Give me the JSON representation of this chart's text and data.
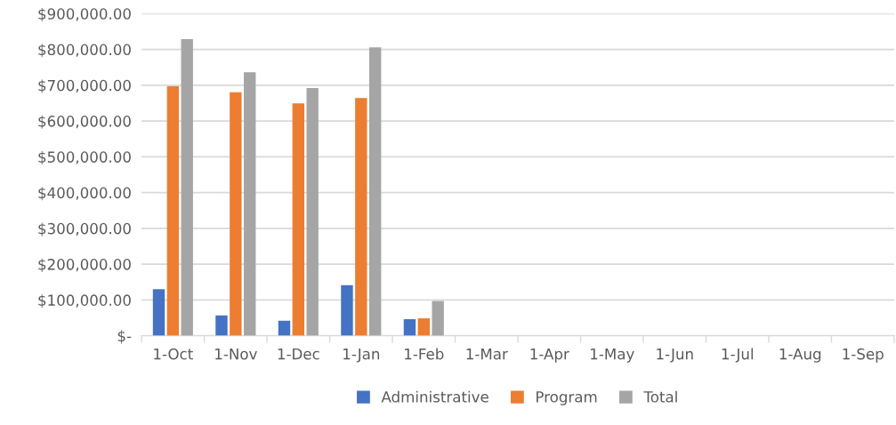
{
  "chart_data": {
    "type": "bar",
    "categories": [
      "1-Oct",
      "1-Nov",
      "1-Dec",
      "1-Jan",
      "1-Feb",
      "1-Mar",
      "1-Apr",
      "1-May",
      "1-Jun",
      "1-Jul",
      "1-Aug",
      "1-Sep"
    ],
    "series": [
      {
        "name": "Administrative",
        "color": "#4472c4",
        "values": [
          130000,
          57000,
          42000,
          141000,
          46000,
          null,
          null,
          null,
          null,
          null,
          null,
          null
        ]
      },
      {
        "name": "Program",
        "color": "#ed7d31",
        "values": [
          697000,
          680000,
          649000,
          664000,
          49000,
          null,
          null,
          null,
          null,
          null,
          null,
          null
        ]
      },
      {
        "name": "Total",
        "color": "#a5a5a5",
        "values": [
          829000,
          736000,
          692000,
          806000,
          97000,
          null,
          null,
          null,
          null,
          null,
          null,
          null
        ]
      }
    ],
    "ylim": [
      0,
      900000
    ],
    "yticks": [
      {
        "value": 0,
        "label": "$-"
      },
      {
        "value": 100000,
        "label": "$100,000.00"
      },
      {
        "value": 200000,
        "label": "$200,000.00"
      },
      {
        "value": 300000,
        "label": "$300,000.00"
      },
      {
        "value": 400000,
        "label": "$400,000.00"
      },
      {
        "value": 500000,
        "label": "$500,000.00"
      },
      {
        "value": 600000,
        "label": "$600,000.00"
      },
      {
        "value": 700000,
        "label": "$700,000.00"
      },
      {
        "value": 800000,
        "label": "$800,000.00"
      },
      {
        "value": 900000,
        "label": "$900,000.00"
      }
    ],
    "grid": "y",
    "legend": "bottom"
  }
}
